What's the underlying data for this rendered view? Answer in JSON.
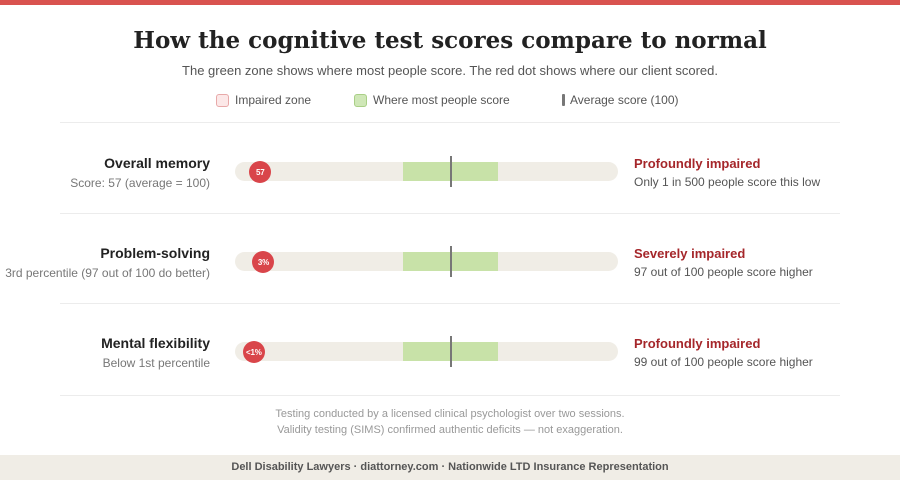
{
  "title": "How the cognitive test scores compare to normal",
  "subtitle": "The green zone shows where most people score. The red dot shows where our client scored.",
  "legend": {
    "impaired": "Impaired zone",
    "normal": "Where most people score",
    "average": "Average score (100)"
  },
  "colors": {
    "accent_red": "#d9454a",
    "status_red": "#a5262a",
    "normal_green": "#c8e2a8",
    "track": "#f0ede6"
  },
  "chart_data": {
    "type": "bar",
    "scale": {
      "min": 40,
      "max": 160,
      "average": 100,
      "normal_range": [
        85,
        115
      ]
    },
    "rows": [
      {
        "label": "Overall memory",
        "sub": "Score: 57 (average = 100)",
        "marker_text": "57",
        "score": 57,
        "status": "Profoundly impaired",
        "detail": "Only 1 in 500 people score this low"
      },
      {
        "label": "Problem-solving",
        "sub": "3rd percentile (97 out of 100 do better)",
        "marker_text": "3%",
        "score": 58,
        "status": "Severely impaired",
        "detail": "97 out of 100 people score higher"
      },
      {
        "label": "Mental flexibility",
        "sub": "Below 1st percentile",
        "marker_text": "<1%",
        "score": 55,
        "status": "Profoundly impaired",
        "detail": "99 out of 100 people score higher"
      }
    ]
  },
  "notes": {
    "line1": "Testing conducted by a licensed clinical psychologist over two sessions.",
    "line2": "Validity testing (SIMS) confirmed authentic deficits — not exaggeration."
  },
  "footer": "Dell Disability Lawyers · diattorney.com · Nationwide LTD Insurance Representation"
}
